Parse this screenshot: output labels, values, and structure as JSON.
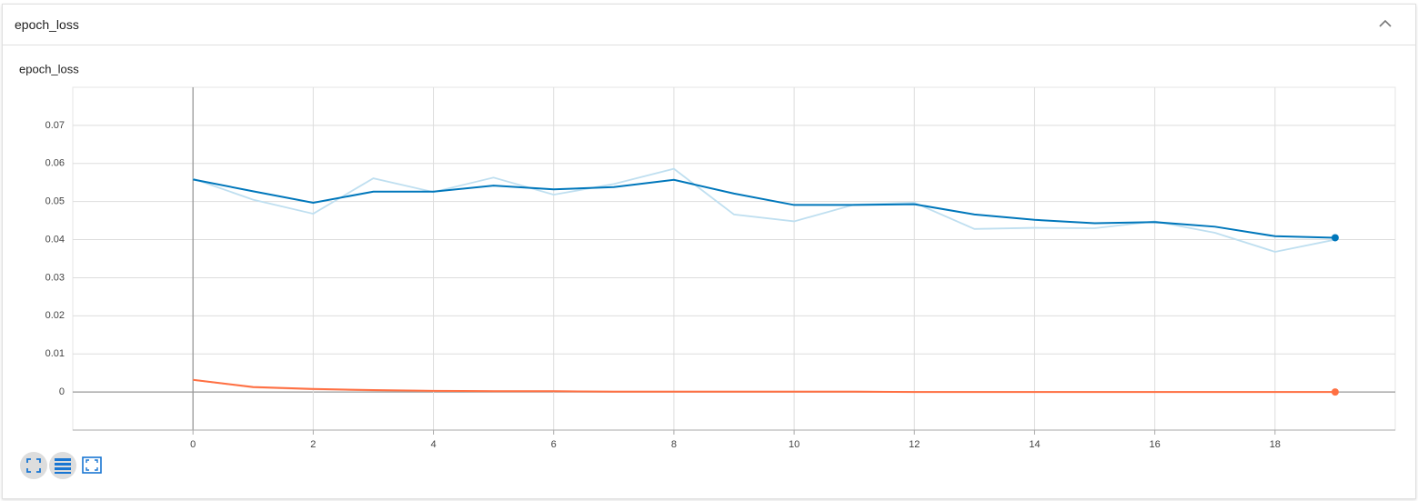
{
  "header": {
    "title": "epoch_loss"
  },
  "chart_data": {
    "type": "line",
    "title": "epoch_loss",
    "x": [
      0,
      1,
      2,
      3,
      4,
      5,
      6,
      7,
      8,
      9,
      10,
      11,
      12,
      13,
      14,
      15,
      16,
      17,
      18,
      19
    ],
    "series": [
      {
        "color": "#bfdff0",
        "values": [
          0.056,
          0.0505,
          0.0468,
          0.0561,
          0.0525,
          0.0563,
          0.0518,
          0.0546,
          0.0586,
          0.0466,
          0.0448,
          0.0492,
          0.0497,
          0.0428,
          0.0431,
          0.043,
          0.0448,
          0.0418,
          0.0368,
          0.04
        ]
      },
      {
        "color": "#f5bfae",
        "values": [
          0.0032,
          0.0012,
          0.0007,
          0.0004,
          0.0003,
          0.0002,
          0.0002,
          0.0001,
          0.0001,
          0.0001,
          0.0001,
          0.0001,
          0.0,
          0.0,
          0.0,
          0.0,
          0.0,
          0.0,
          0.0,
          0.0
        ]
      },
      {
        "color": "#0077bb",
        "values": [
          0.0558,
          0.0527,
          0.0497,
          0.0526,
          0.0526,
          0.0542,
          0.0532,
          0.0538,
          0.0557,
          0.0521,
          0.0491,
          0.0491,
          0.0493,
          0.0466,
          0.0452,
          0.0443,
          0.0446,
          0.0434,
          0.0409,
          0.0405
        ],
        "end_marker": true
      },
      {
        "color": "#ff7043",
        "values": [
          0.0032,
          0.0013,
          0.0008,
          0.0005,
          0.0003,
          0.0002,
          0.0002,
          0.0001,
          0.0001,
          0.0001,
          0.0001,
          0.0001,
          0.0,
          0.0,
          0.0,
          0.0,
          0.0,
          0.0,
          0.0,
          0.0
        ],
        "end_marker": true
      }
    ],
    "xlim": [
      -2,
      20
    ],
    "xticks": [
      0,
      2,
      4,
      6,
      8,
      10,
      12,
      14,
      16,
      18
    ],
    "ylim": [
      -0.01,
      0.08
    ],
    "yticks": [
      0,
      0.01,
      0.02,
      0.03,
      0.04,
      0.05,
      0.06,
      0.07
    ],
    "grid": true
  }
}
